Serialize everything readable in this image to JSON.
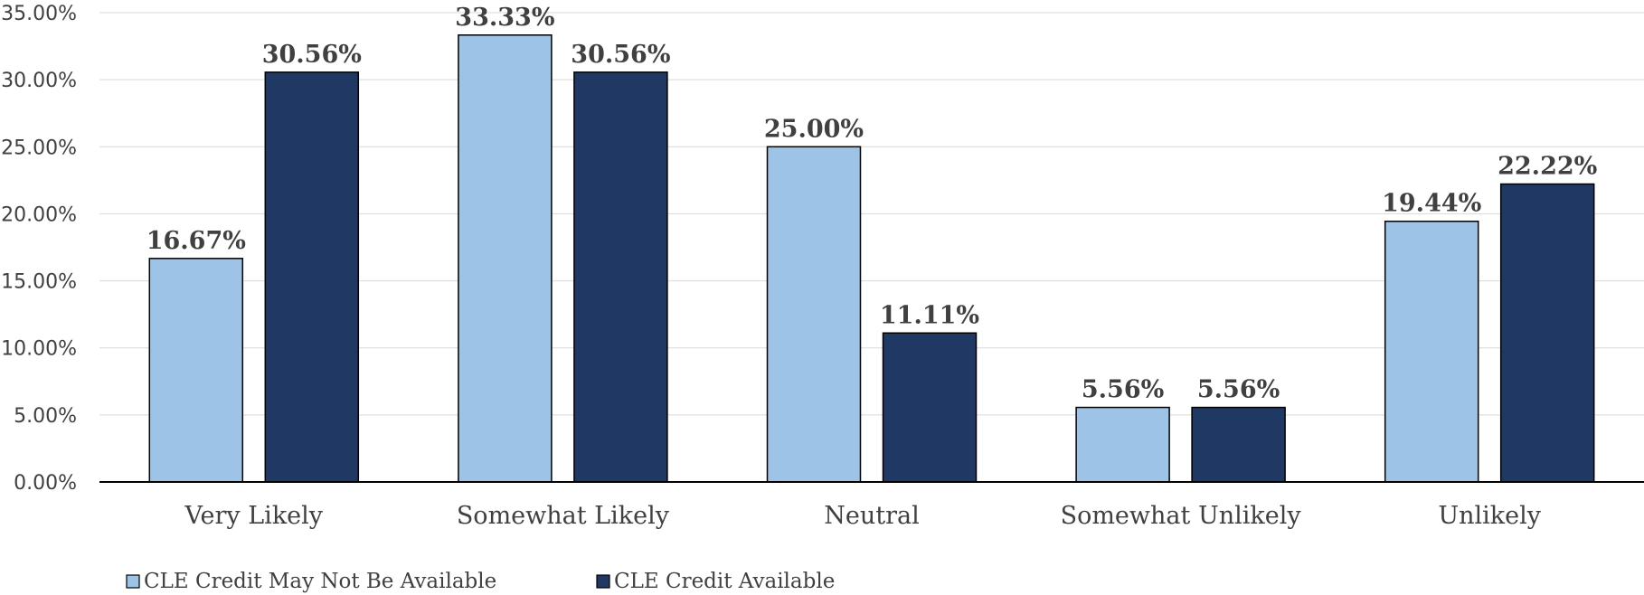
{
  "chart_data": {
    "type": "bar",
    "title": "",
    "xlabel": "",
    "ylabel": "",
    "ylim": [
      0,
      35
    ],
    "y_ticks": [
      "0.00%",
      "5.00%",
      "10.00%",
      "15.00%",
      "20.00%",
      "25.00%",
      "30.00%",
      "35.00%"
    ],
    "grid": true,
    "legend_position": "bottom-left",
    "categories": [
      "Very Likely",
      "Somewhat Likely",
      "Neutral",
      "Somewhat Unlikely",
      "Unlikely"
    ],
    "series": [
      {
        "name": "CLE Credit May Not Be Available",
        "color": "#9dc3e6",
        "values": [
          16.67,
          33.33,
          25.0,
          5.56,
          19.44
        ],
        "labels": [
          "16.67%",
          "33.33%",
          "25.00%",
          "5.56%",
          "19.44%"
        ]
      },
      {
        "name": "CLE Credit Available",
        "color": "#1f3864",
        "values": [
          30.56,
          30.56,
          11.11,
          5.56,
          22.22
        ],
        "labels": [
          "30.56%",
          "30.56%",
          "11.11%",
          "5.56%",
          "22.22%"
        ]
      }
    ]
  }
}
